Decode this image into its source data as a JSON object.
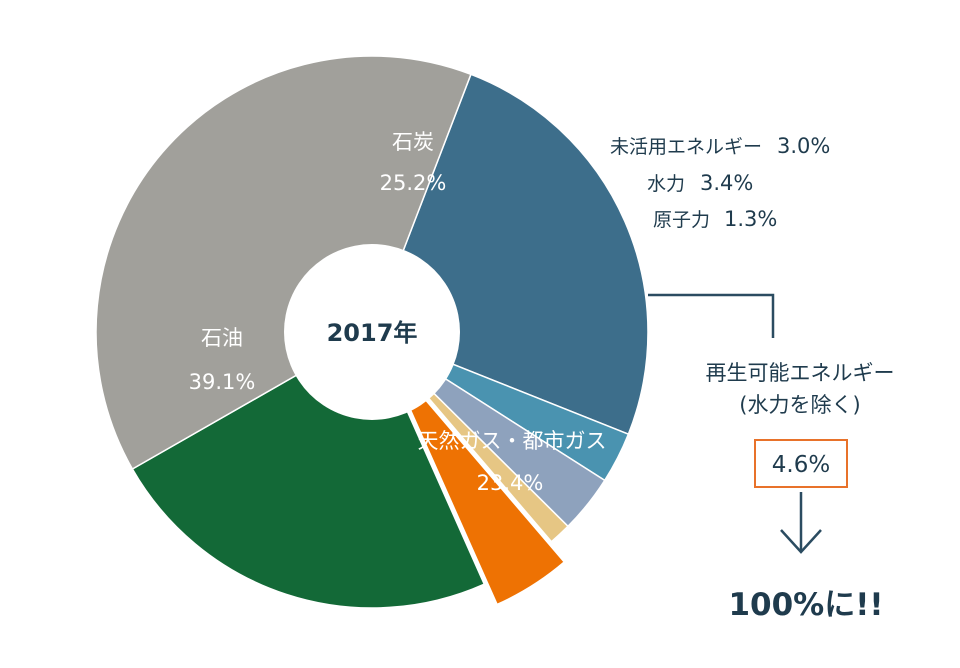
{
  "chart_data": {
    "type": "pie",
    "title": "",
    "center_label": "2017年",
    "slices": [
      {
        "name": "石炭",
        "value": 25.2,
        "label": "25.2%",
        "color": "#3d6e8b"
      },
      {
        "name": "未活用エネルギー",
        "value": 3.0,
        "label": "3.0%",
        "color": "#4a93b0"
      },
      {
        "name": "水力",
        "value": 3.4,
        "label": "3.4%",
        "color": "#8ea2bd"
      },
      {
        "name": "原子力",
        "value": 1.3,
        "label": "1.3%",
        "color": "#e6c684"
      },
      {
        "name": "再生可能エネルギー (水力を除く)",
        "value": 4.6,
        "label": "4.6%",
        "color": "#ee7203",
        "exploded": true
      },
      {
        "name": "天然ガス・都市ガス",
        "value": 23.4,
        "label": "23.4%",
        "color": "#136937"
      },
      {
        "name": "石油",
        "value": 39.1,
        "label": "39.1%",
        "color": "#a1a09b"
      }
    ],
    "annotations": {
      "renewable_line1": "再生可能エネルギー",
      "renewable_line2": "(水力を除く)",
      "renewable_value": "4.6%",
      "goal": "100%に!!"
    },
    "accent_color": "#e8722a",
    "line_color": "#2b4c61"
  }
}
